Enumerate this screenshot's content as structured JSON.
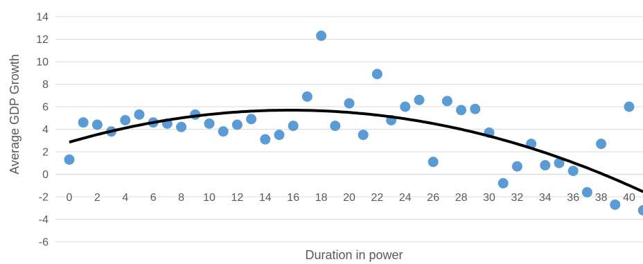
{
  "chart_data": {
    "type": "scatter",
    "title": "",
    "xlabel": "Duration in power",
    "ylabel": "Average GDP Growth",
    "xlim": [
      -1,
      41
    ],
    "ylim": [
      -6,
      14
    ],
    "y_ticks": [
      -6,
      -4,
      -2,
      0,
      2,
      4,
      6,
      8,
      10,
      12,
      14
    ],
    "x_ticks": [
      0,
      2,
      4,
      6,
      8,
      10,
      12,
      14,
      16,
      18,
      20,
      22,
      24,
      26,
      28,
      30,
      32,
      34,
      36,
      38,
      40
    ],
    "x_tick_labels_at_y": -2,
    "grid": "horizontal",
    "legend": "none",
    "point_color": "#5B9BD5",
    "trend_color": "#000000",
    "grid_color": "#D9D9D9",
    "points": [
      {
        "x": 0,
        "y": 1.3
      },
      {
        "x": 1,
        "y": 4.6
      },
      {
        "x": 2,
        "y": 4.4
      },
      {
        "x": 3,
        "y": 3.8
      },
      {
        "x": 4,
        "y": 4.8
      },
      {
        "x": 5,
        "y": 5.3
      },
      {
        "x": 6,
        "y": 4.6
      },
      {
        "x": 7,
        "y": 4.5
      },
      {
        "x": 8,
        "y": 4.2
      },
      {
        "x": 9,
        "y": 5.3
      },
      {
        "x": 10,
        "y": 4.5
      },
      {
        "x": 11,
        "y": 3.8
      },
      {
        "x": 12,
        "y": 4.4
      },
      {
        "x": 13,
        "y": 4.9
      },
      {
        "x": 14,
        "y": 3.1
      },
      {
        "x": 15,
        "y": 3.5
      },
      {
        "x": 16,
        "y": 4.3
      },
      {
        "x": 17,
        "y": 6.9
      },
      {
        "x": 18,
        "y": 12.3
      },
      {
        "x": 19,
        "y": 4.3
      },
      {
        "x": 20,
        "y": 6.3
      },
      {
        "x": 21,
        "y": 3.5
      },
      {
        "x": 22,
        "y": 8.9
      },
      {
        "x": 23,
        "y": 4.8
      },
      {
        "x": 24,
        "y": 6.0
      },
      {
        "x": 25,
        "y": 6.6
      },
      {
        "x": 26,
        "y": 1.1
      },
      {
        "x": 27,
        "y": 6.5
      },
      {
        "x": 28,
        "y": 5.7
      },
      {
        "x": 29,
        "y": 5.8
      },
      {
        "x": 30,
        "y": 3.7
      },
      {
        "x": 31,
        "y": -0.8
      },
      {
        "x": 32,
        "y": 0.7
      },
      {
        "x": 33,
        "y": 2.7
      },
      {
        "x": 34,
        "y": 0.8
      },
      {
        "x": 35,
        "y": 1.0
      },
      {
        "x": 36,
        "y": 0.3
      },
      {
        "x": 37,
        "y": -1.6
      },
      {
        "x": 38,
        "y": 2.7
      },
      {
        "x": 39,
        "y": -2.7
      },
      {
        "x": 40,
        "y": 6.0
      },
      {
        "x": 41,
        "y": -3.2
      }
    ],
    "trendline": {
      "type": "polynomial",
      "order": 2,
      "coefficients": [
        2.85,
        0.36,
        -0.0114
      ]
    }
  }
}
